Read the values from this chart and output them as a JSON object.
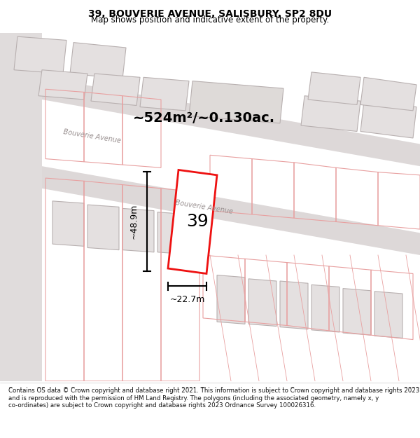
{
  "title": "39, BOUVERIE AVENUE, SALISBURY, SP2 8DU",
  "subtitle": "Map shows position and indicative extent of the property.",
  "area_label": "~524m²/~0.130ac.",
  "number_label": "39",
  "dim_height": "~48.9m",
  "dim_width": "~22.7m",
  "street_label1": "Bouverie Avenue",
  "street_label2": "Bouverie Avenue",
  "footer": "Contains OS data © Crown copyright and database right 2021. This information is subject to Crown copyright and database rights 2023 and is reproduced with the permission of HM Land Registry. The polygons (including the associated geometry, namely x, y co-ordinates) are subject to Crown copyright and database rights 2023 Ordnance Survey 100026316.",
  "bg_color": "#f5f0f0",
  "map_bg": "#f7f2f2",
  "plot_color": "#ff2222",
  "building_fill": "#e8e8e8",
  "road_color": "#e0d8d8",
  "title_fontsize": 10,
  "subtitle_fontsize": 9
}
